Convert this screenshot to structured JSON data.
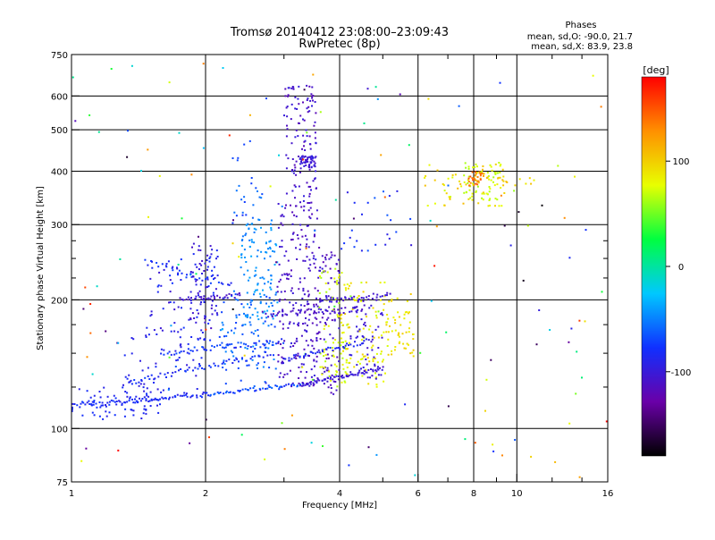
{
  "chart_data": {
    "type": "scatter",
    "title": "Tromsø 20140412 23:08:00–23:09:43",
    "subtitle": "RwPretec (8p)",
    "xlabel": "Frequency [MHz]",
    "ylabel": "Stationary phase Virtual Height [km]",
    "xscale": "log",
    "yscale": "log",
    "xlim": [
      1,
      16
    ],
    "ylim": [
      75,
      750
    ],
    "x_ticks": [
      1,
      2,
      4,
      6,
      8,
      10,
      16
    ],
    "x_minor_ticks": [
      3,
      5,
      7,
      9,
      12,
      14
    ],
    "y_ticks": [
      75,
      100,
      200,
      300,
      400,
      500,
      600,
      750
    ],
    "y_minor_ticks": [
      125,
      150,
      175,
      225,
      250,
      275
    ],
    "grid": true,
    "legend": {
      "title": "Phases",
      "lines": [
        "mean, sd,O: -90.0, 21.7",
        "mean, sd,X:  83.9, 23.8"
      ],
      "placement": "top-right"
    },
    "colorbar": {
      "label": "[deg]",
      "range": [
        -180,
        180
      ],
      "ticks": [
        100,
        0,
        -100
      ],
      "colormap": [
        "#000000",
        "#6a00a8",
        "#1030ff",
        "#00c8ff",
        "#00ff40",
        "#e8ff00",
        "#ff9000",
        "#ff0000"
      ]
    },
    "traces": [
      {
        "from": [
          1.0,
          113
        ],
        "to": [
          2.0,
          120
        ],
        "n": 70,
        "jitter": 0.012,
        "phase": [
          -95,
          -75
        ]
      },
      {
        "from": [
          2.0,
          120
        ],
        "to": [
          3.3,
          127
        ],
        "n": 50,
        "jitter": 0.01,
        "phase": [
          -85,
          -55
        ]
      },
      {
        "from": [
          3.3,
          127
        ],
        "to": [
          5.0,
          138
        ],
        "n": 60,
        "jitter": 0.01,
        "phase": [
          -110,
          -95
        ]
      },
      {
        "from": [
          3.0,
          145
        ],
        "to": [
          4.6,
          160
        ],
        "n": 45,
        "jitter": 0.012,
        "phase": [
          -95,
          -80
        ]
      },
      {
        "from": [
          1.35,
          128
        ],
        "to": [
          2.8,
          150
        ],
        "n": 55,
        "jitter": 0.015,
        "phase": [
          -90,
          -70
        ]
      },
      {
        "from": [
          1.6,
          150
        ],
        "to": [
          3.0,
          160
        ],
        "n": 45,
        "jitter": 0.015,
        "phase": [
          -90,
          -65
        ]
      },
      {
        "from": [
          1.75,
          200
        ],
        "to": [
          2.4,
          205
        ],
        "n": 30,
        "jitter": 0.012,
        "phase": [
          -115,
          -100
        ]
      },
      {
        "from": [
          2.7,
          185
        ],
        "to": [
          4.5,
          190
        ],
        "n": 45,
        "jitter": 0.015,
        "phase": [
          -115,
          -100
        ]
      },
      {
        "from": [
          3.6,
          200
        ],
        "to": [
          5.2,
          205
        ],
        "n": 35,
        "jitter": 0.015,
        "phase": [
          -110,
          -95
        ]
      },
      {
        "from": [
          1.45,
          245
        ],
        "to": [
          2.3,
          215
        ],
        "n": 30,
        "jitter": 0.02,
        "phase": [
          -90,
          -70
        ]
      }
    ],
    "clusters": [
      {
        "x": [
          1.0,
          1.6
        ],
        "y": [
          105,
          125
        ],
        "n": 70,
        "phase": [
          -95,
          -75
        ]
      },
      {
        "x": [
          1.3,
          2.0
        ],
        "y": [
          120,
          175
        ],
        "n": 70,
        "phase": [
          -100,
          -80
        ]
      },
      {
        "x": [
          1.5,
          2.1
        ],
        "y": [
          160,
          250
        ],
        "n": 70,
        "phase": [
          -110,
          -75
        ]
      },
      {
        "x": [
          1.85,
          2.15
        ],
        "y": [
          180,
          280
        ],
        "n": 60,
        "phase": [
          -110,
          -80
        ]
      },
      {
        "x": [
          2.15,
          2.9
        ],
        "y": [
          125,
          210
        ],
        "n": 110,
        "phase": [
          -75,
          -45
        ]
      },
      {
        "x": [
          2.4,
          2.9
        ],
        "y": [
          180,
          310
        ],
        "n": 110,
        "phase": [
          -55,
          -35
        ]
      },
      {
        "x": [
          2.3,
          2.7
        ],
        "y": [
          300,
          480
        ],
        "n": 25,
        "phase": [
          -80,
          -50
        ]
      },
      {
        "x": [
          2.9,
          3.6
        ],
        "y": [
          125,
          200
        ],
        "n": 120,
        "phase": [
          -120,
          -95
        ]
      },
      {
        "x": [
          2.9,
          3.6
        ],
        "y": [
          200,
          340
        ],
        "n": 110,
        "phase": [
          -120,
          -100
        ]
      },
      {
        "x": [
          3.0,
          3.55
        ],
        "y": [
          340,
          640
        ],
        "n": 110,
        "phase": [
          -120,
          -95
        ]
      },
      {
        "x": [
          3.25,
          3.55
        ],
        "y": [
          408,
          435
        ],
        "n": 45,
        "phase": [
          -110,
          -95
        ]
      },
      {
        "x": [
          3.55,
          4.0
        ],
        "y": [
          120,
          260
        ],
        "n": 90,
        "phase": [
          -120,
          -100
        ]
      },
      {
        "x": [
          3.6,
          4.2
        ],
        "y": [
          125,
          240
        ],
        "n": 75,
        "phase": [
          60,
          85
        ]
      },
      {
        "x": [
          4.0,
          5.2
        ],
        "y": [
          125,
          220
        ],
        "n": 110,
        "phase": [
          70,
          100
        ]
      },
      {
        "x": [
          4.2,
          5.0
        ],
        "y": [
          130,
          200
        ],
        "n": 60,
        "phase": [
          -110,
          -95
        ]
      },
      {
        "x": [
          5.2,
          5.9
        ],
        "y": [
          145,
          210
        ],
        "n": 45,
        "phase": [
          80,
          105
        ]
      },
      {
        "x": [
          4.0,
          5.8
        ],
        "y": [
          260,
          360
        ],
        "n": 25,
        "phase": [
          -100,
          -60
        ]
      },
      {
        "x": [
          6.2,
          9.5
        ],
        "y": [
          330,
          420
        ],
        "n": 60,
        "phase": [
          70,
          110
        ]
      },
      {
        "x": [
          7.6,
          9.2
        ],
        "y": [
          340,
          420
        ],
        "n": 55,
        "phase": [
          60,
          80
        ]
      },
      {
        "x": [
          7.8,
          8.5
        ],
        "y": [
          370,
          400
        ],
        "n": 30,
        "phase": [
          120,
          160
        ]
      },
      {
        "x": [
          9.0,
          11.0
        ],
        "y": [
          370,
          390
        ],
        "n": 12,
        "phase": [
          80,
          110
        ]
      },
      {
        "x": [
          1.0,
          16.0
        ],
        "y": [
          76,
          740
        ],
        "n": 150,
        "phase": [
          -180,
          180
        ]
      }
    ]
  }
}
